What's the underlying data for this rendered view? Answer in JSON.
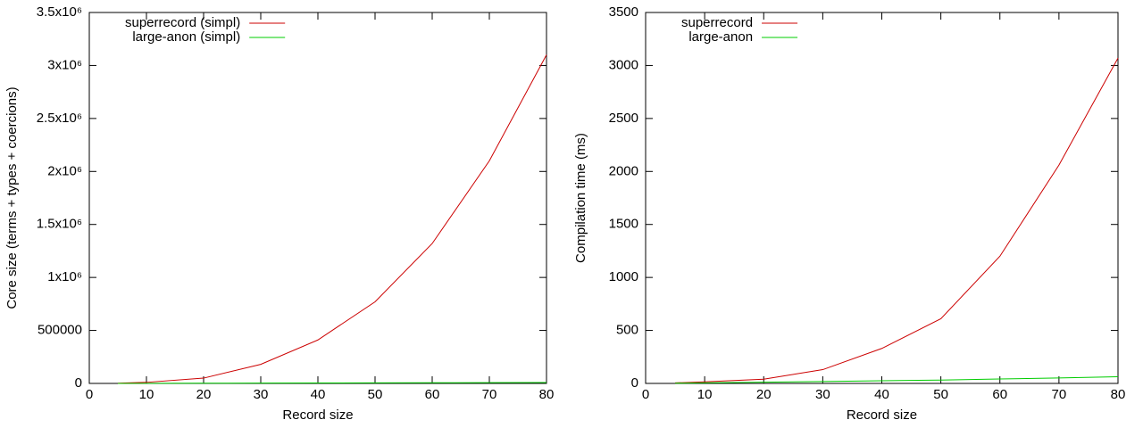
{
  "chart_data": [
    {
      "type": "line",
      "x_label": "Record size",
      "y_label": "Core size (terms + types + coercions)",
      "x": [
        5,
        10,
        20,
        30,
        40,
        50,
        60,
        70,
        80
      ],
      "series": [
        {
          "name": "superrecord (simpl)",
          "color": "#cc0000",
          "values": [
            2000,
            10000,
            50000,
            180000,
            410000,
            770000,
            1320000,
            2100000,
            3100000
          ]
        },
        {
          "name": "large-anon (simpl)",
          "color": "#00cc00",
          "values": [
            500,
            1000,
            2000,
            3000,
            4000,
            5000,
            6000,
            7000,
            8000
          ]
        }
      ],
      "xlim": [
        0,
        80
      ],
      "xticks": [
        0,
        10,
        20,
        30,
        40,
        50,
        60,
        70,
        80
      ],
      "ylim": [
        0,
        3500000
      ],
      "yticks": [
        0,
        500000,
        {
          "value": 1000000,
          "label": "1x10⁶"
        },
        {
          "value": 1500000,
          "label": "1.5x10⁶"
        },
        {
          "value": 2000000,
          "label": "2x10⁶"
        },
        {
          "value": 2500000,
          "label": "2.5x10⁶"
        },
        {
          "value": 3000000,
          "label": "3x10⁶"
        },
        {
          "value": 3500000,
          "label": "3.5x10⁶"
        }
      ],
      "legend": "top-left"
    },
    {
      "type": "line",
      "x_label": "Record size",
      "y_label": "Compilation time (ms)",
      "x": [
        5,
        10,
        20,
        30,
        40,
        50,
        60,
        70,
        80
      ],
      "series": [
        {
          "name": "superrecord",
          "color": "#cc0000",
          "values": [
            5,
            15,
            40,
            130,
            330,
            610,
            1200,
            2060,
            3070
          ]
        },
        {
          "name": "large-anon",
          "color": "#00cc00",
          "values": [
            2,
            5,
            12,
            18,
            25,
            32,
            42,
            52,
            63
          ]
        }
      ],
      "xlim": [
        0,
        80
      ],
      "xticks": [
        0,
        10,
        20,
        30,
        40,
        50,
        60,
        70,
        80
      ],
      "ylim": [
        0,
        3500
      ],
      "yticks": [
        0,
        500,
        1000,
        1500,
        2000,
        2500,
        3000,
        3500
      ],
      "legend": "top-left"
    }
  ]
}
